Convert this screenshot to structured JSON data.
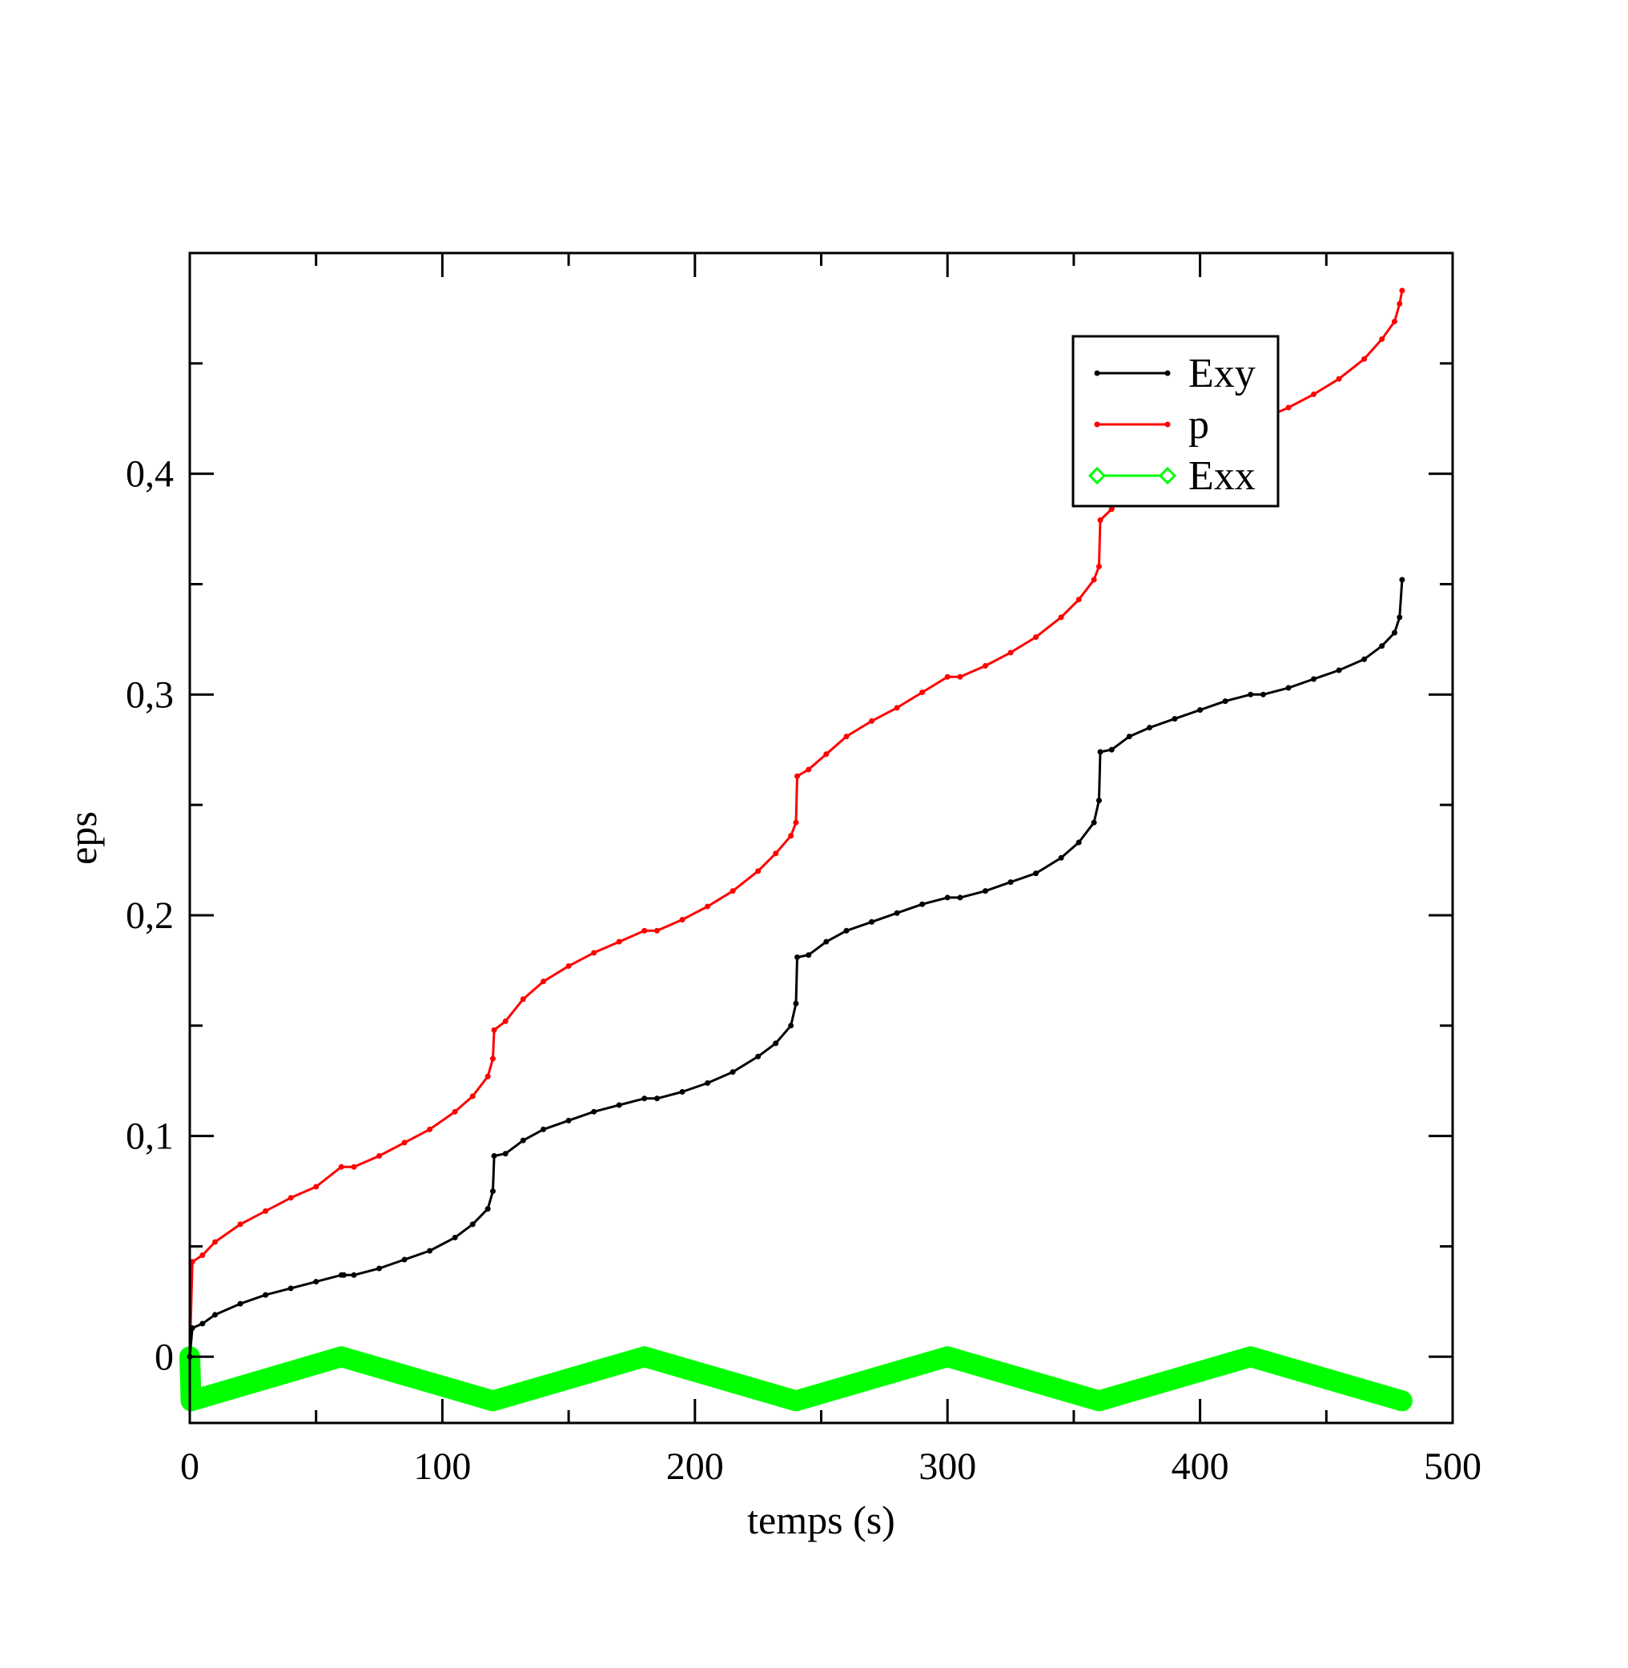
{
  "chart_data": {
    "type": "line",
    "title": "",
    "xlabel": "temps (s)",
    "ylabel": "eps",
    "xlim": [
      0,
      500
    ],
    "ylim": [
      -0.03,
      0.5
    ],
    "x_ticks": [
      0,
      100,
      200,
      300,
      400,
      500
    ],
    "x_tick_labels": [
      "0",
      "100",
      "200",
      "300",
      "400",
      "500"
    ],
    "y_ticks": [
      0,
      0.1,
      0.2,
      0.3,
      0.4
    ],
    "y_tick_labels": [
      "0",
      "0,1",
      "0,2",
      "0,3",
      "0,4"
    ],
    "grid": false,
    "legend_position": "top-right",
    "series": [
      {
        "name": "Exy",
        "color": "#000000",
        "marker": "dot",
        "line_width": 3,
        "points": [
          [
            0,
            0
          ],
          [
            1,
            0.013
          ],
          [
            5,
            0.015
          ],
          [
            10,
            0.019
          ],
          [
            20,
            0.024
          ],
          [
            30,
            0.028
          ],
          [
            40,
            0.031
          ],
          [
            50,
            0.034
          ],
          [
            60,
            0.037
          ],
          [
            61,
            0.037
          ],
          [
            65,
            0.037
          ],
          [
            75,
            0.04
          ],
          [
            85,
            0.044
          ],
          [
            95,
            0.048
          ],
          [
            105,
            0.054
          ],
          [
            112,
            0.06
          ],
          [
            118,
            0.067
          ],
          [
            120,
            0.075
          ],
          [
            120.5,
            0.091
          ],
          [
            125,
            0.092
          ],
          [
            132,
            0.098
          ],
          [
            140,
            0.103
          ],
          [
            150,
            0.107
          ],
          [
            160,
            0.111
          ],
          [
            170,
            0.114
          ],
          [
            180,
            0.117
          ],
          [
            185,
            0.117
          ],
          [
            195,
            0.12
          ],
          [
            205,
            0.124
          ],
          [
            215,
            0.129
          ],
          [
            225,
            0.136
          ],
          [
            232,
            0.142
          ],
          [
            238,
            0.15
          ],
          [
            240,
            0.16
          ],
          [
            240.5,
            0.181
          ],
          [
            245,
            0.182
          ],
          [
            252,
            0.188
          ],
          [
            260,
            0.193
          ],
          [
            270,
            0.197
          ],
          [
            280,
            0.201
          ],
          [
            290,
            0.205
          ],
          [
            300,
            0.208
          ],
          [
            305,
            0.208
          ],
          [
            315,
            0.211
          ],
          [
            325,
            0.215
          ],
          [
            335,
            0.219
          ],
          [
            345,
            0.226
          ],
          [
            352,
            0.233
          ],
          [
            358,
            0.242
          ],
          [
            360,
            0.252
          ],
          [
            360.5,
            0.274
          ],
          [
            365,
            0.275
          ],
          [
            372,
            0.281
          ],
          [
            380,
            0.285
          ],
          [
            390,
            0.289
          ],
          [
            400,
            0.293
          ],
          [
            410,
            0.297
          ],
          [
            420,
            0.3
          ],
          [
            425,
            0.3
          ],
          [
            435,
            0.303
          ],
          [
            445,
            0.307
          ],
          [
            455,
            0.311
          ],
          [
            465,
            0.316
          ],
          [
            472,
            0.322
          ],
          [
            477,
            0.328
          ],
          [
            479,
            0.335
          ],
          [
            480,
            0.352
          ]
        ]
      },
      {
        "name": "p",
        "color": "#ff0000",
        "marker": "dot",
        "line_width": 3,
        "points": [
          [
            0,
            0
          ],
          [
            1,
            0.043
          ],
          [
            5,
            0.046
          ],
          [
            10,
            0.052
          ],
          [
            20,
            0.06
          ],
          [
            30,
            0.066
          ],
          [
            40,
            0.072
          ],
          [
            50,
            0.077
          ],
          [
            60,
            0.086
          ],
          [
            65,
            0.086
          ],
          [
            75,
            0.091
          ],
          [
            85,
            0.097
          ],
          [
            95,
            0.103
          ],
          [
            105,
            0.111
          ],
          [
            112,
            0.118
          ],
          [
            118,
            0.127
          ],
          [
            120,
            0.135
          ],
          [
            120.5,
            0.148
          ],
          [
            125,
            0.152
          ],
          [
            132,
            0.162
          ],
          [
            140,
            0.17
          ],
          [
            150,
            0.177
          ],
          [
            160,
            0.183
          ],
          [
            170,
            0.188
          ],
          [
            180,
            0.193
          ],
          [
            185,
            0.193
          ],
          [
            195,
            0.198
          ],
          [
            205,
            0.204
          ],
          [
            215,
            0.211
          ],
          [
            225,
            0.22
          ],
          [
            232,
            0.228
          ],
          [
            238,
            0.236
          ],
          [
            240,
            0.242
          ],
          [
            240.5,
            0.263
          ],
          [
            245,
            0.266
          ],
          [
            252,
            0.273
          ],
          [
            260,
            0.281
          ],
          [
            270,
            0.288
          ],
          [
            280,
            0.294
          ],
          [
            290,
            0.301
          ],
          [
            300,
            0.308
          ],
          [
            305,
            0.308
          ],
          [
            315,
            0.313
          ],
          [
            325,
            0.319
          ],
          [
            335,
            0.326
          ],
          [
            345,
            0.335
          ],
          [
            352,
            0.343
          ],
          [
            358,
            0.352
          ],
          [
            360,
            0.358
          ],
          [
            360.5,
            0.379
          ],
          [
            365,
            0.384
          ],
          [
            372,
            0.393
          ],
          [
            380,
            0.402
          ],
          [
            390,
            0.409
          ],
          [
            400,
            0.415
          ],
          [
            410,
            0.42
          ],
          [
            420,
            0.424
          ],
          [
            425,
            0.425
          ],
          [
            435,
            0.43
          ],
          [
            445,
            0.436
          ],
          [
            455,
            0.443
          ],
          [
            465,
            0.452
          ],
          [
            472,
            0.461
          ],
          [
            477,
            0.469
          ],
          [
            479,
            0.477
          ],
          [
            480,
            0.483
          ]
        ]
      },
      {
        "name": "Exx",
        "color": "#00ff00",
        "marker": "diamond-open",
        "line_width": 26,
        "points": [
          [
            0,
            0
          ],
          [
            0.5,
            -0.02
          ],
          [
            60,
            0
          ],
          [
            120,
            -0.02
          ],
          [
            180,
            0
          ],
          [
            240,
            -0.02
          ],
          [
            300,
            0
          ],
          [
            360,
            -0.02
          ],
          [
            420,
            0
          ],
          [
            480,
            -0.02
          ]
        ]
      }
    ]
  }
}
